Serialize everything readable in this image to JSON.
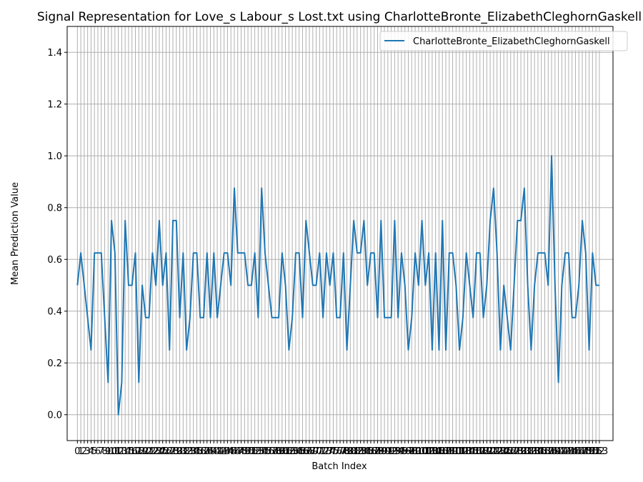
{
  "chart_data": {
    "type": "line",
    "title": "Signal Representation for Love_s Labour_s Lost.txt using CharlotteBronte_ElizabethCleghornGaskell",
    "xlabel": "Batch Index",
    "ylabel": "Mean Prediction Value",
    "xlim": [
      -3,
      157
    ],
    "ylim": [
      -0.1,
      1.5
    ],
    "yticks": [
      0.0,
      0.2,
      0.4,
      0.6,
      0.8,
      1.0,
      1.2,
      1.4
    ],
    "grid": true,
    "legend_position": "upper-right",
    "colors": {
      "series": "#1f77b4",
      "grid": "#b0b0b0"
    },
    "x": [
      0,
      1,
      2,
      3,
      4,
      5,
      6,
      7,
      8,
      9,
      10,
      11,
      12,
      13,
      14,
      15,
      16,
      17,
      18,
      19,
      20,
      21,
      22,
      23,
      24,
      25,
      26,
      27,
      28,
      29,
      30,
      31,
      32,
      33,
      34,
      35,
      36,
      37,
      38,
      39,
      40,
      41,
      42,
      43,
      44,
      45,
      46,
      47,
      48,
      49,
      50,
      51,
      52,
      53,
      54,
      55,
      56,
      57,
      58,
      59,
      60,
      61,
      62,
      63,
      64,
      65,
      66,
      67,
      68,
      69,
      70,
      71,
      72,
      73,
      74,
      75,
      76,
      77,
      78,
      79,
      80,
      81,
      82,
      83,
      84,
      85,
      86,
      87,
      88,
      89,
      90,
      91,
      92,
      93,
      94,
      95,
      96,
      97,
      98,
      99,
      100,
      101,
      102,
      103,
      104,
      105,
      106,
      107,
      108,
      109,
      110,
      111,
      112,
      113,
      114,
      115,
      116,
      117,
      118,
      119,
      120,
      121,
      122,
      123,
      124,
      125,
      126,
      127,
      128,
      129,
      130,
      131,
      132,
      133,
      134,
      135,
      136,
      137,
      138,
      139,
      140,
      141,
      142,
      143,
      144,
      145,
      146,
      147,
      148,
      149,
      150,
      151,
      152,
      153
    ],
    "series": [
      {
        "name": "CharlotteBronte_ElizabethCleghornGaskell",
        "values": [
          0.5,
          0.625,
          0.5,
          0.375,
          0.25,
          0.625,
          0.625,
          0.625,
          0.375,
          0.125,
          0.75,
          0.625,
          0.0,
          0.125,
          0.75,
          0.5,
          0.5,
          0.625,
          0.125,
          0.5,
          0.375,
          0.375,
          0.625,
          0.5,
          0.75,
          0.5,
          0.625,
          0.25,
          0.75,
          0.75,
          0.375,
          0.625,
          0.25,
          0.375,
          0.625,
          0.625,
          0.375,
          0.375,
          0.625,
          0.375,
          0.625,
          0.375,
          0.5,
          0.625,
          0.625,
          0.5,
          0.875,
          0.625,
          0.625,
          0.625,
          0.5,
          0.5,
          0.625,
          0.375,
          0.875,
          0.625,
          0.5,
          0.375,
          0.375,
          0.375,
          0.625,
          0.5,
          0.25,
          0.375,
          0.625,
          0.625,
          0.375,
          0.75,
          0.625,
          0.5,
          0.5,
          0.625,
          0.375,
          0.625,
          0.5,
          0.625,
          0.375,
          0.375,
          0.625,
          0.25,
          0.5,
          0.75,
          0.625,
          0.625,
          0.75,
          0.5,
          0.625,
          0.625,
          0.375,
          0.75,
          0.375,
          0.375,
          0.375,
          0.75,
          0.375,
          0.625,
          0.5,
          0.25,
          0.375,
          0.625,
          0.5,
          0.75,
          0.5,
          0.625,
          0.25,
          0.625,
          0.25,
          0.75,
          0.25,
          0.625,
          0.625,
          0.5,
          0.25,
          0.375,
          0.625,
          0.5,
          0.375,
          0.625,
          0.625,
          0.375,
          0.5,
          0.75,
          0.875,
          0.625,
          0.25,
          0.5,
          0.375,
          0.25,
          0.5,
          0.75,
          0.75,
          0.875,
          0.5,
          0.25,
          0.5,
          0.625,
          0.625,
          0.625,
          0.5,
          1.0,
          0.5,
          0.125,
          0.5,
          0.625,
          0.625,
          0.375,
          0.375,
          0.5,
          0.75,
          0.625,
          0.25,
          0.625,
          0.5,
          0.5
        ]
      }
    ]
  }
}
